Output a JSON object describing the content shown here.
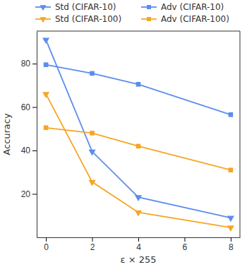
{
  "chart_data": {
    "type": "line",
    "x_label": "ε × 255",
    "y_label": "Accuracy",
    "x": [
      0,
      2,
      4,
      8
    ],
    "series": [
      {
        "name": "Std (CIFAR-10)",
        "color": "#5b8def",
        "marker": "triangle_down",
        "values": [
          91,
          39.5,
          18.5,
          9
        ]
      },
      {
        "name": "Adv (CIFAR-10)",
        "color": "#5b8def",
        "marker": "square",
        "values": [
          79.5,
          75.5,
          70.5,
          56.5
        ]
      },
      {
        "name": "Std (CIFAR-100)",
        "color": "#f5a623",
        "marker": "triangle_down",
        "values": [
          66,
          25.5,
          11.5,
          4.5
        ]
      },
      {
        "name": "Adv (CIFAR-100)",
        "color": "#f5a623",
        "marker": "square",
        "values": [
          50.5,
          48,
          42,
          31
        ]
      }
    ],
    "xlim": [
      -0.4,
      8.4
    ],
    "xticks": [
      0,
      2,
      4,
      6,
      8
    ],
    "ylim": [
      0,
      95
    ],
    "yticks": [
      20,
      40,
      60,
      80
    ],
    "legend": "top"
  }
}
